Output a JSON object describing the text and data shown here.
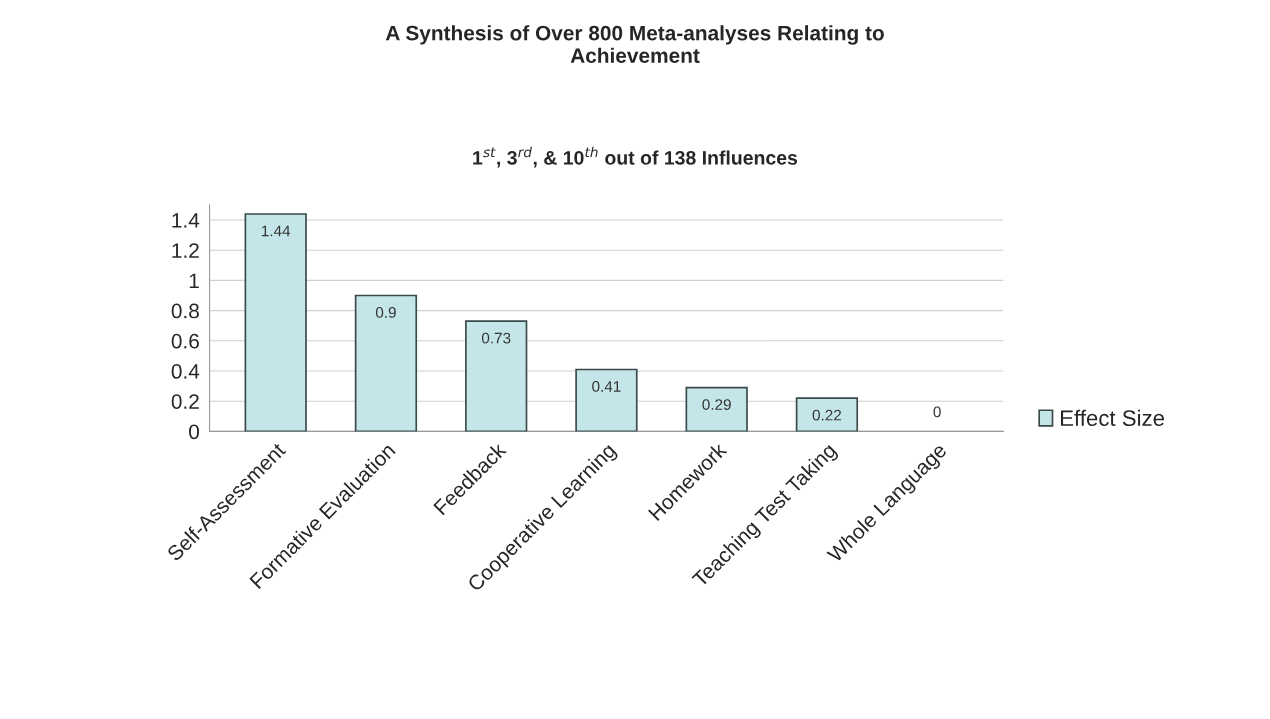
{
  "chart_data": {
    "type": "bar",
    "title": "A Synthesis of Over 800 Meta-analyses Relating to\nAchievement",
    "subtitle": "1$^{st}$, 3$^{rd}$, & 10$^{th}$ out of 138 Influences",
    "categories": [
      "Self-Assessment",
      "Formative Evaluation",
      "Feedback",
      "Cooperative Learning",
      "Homework",
      "Teaching Test Taking",
      "Whole Language"
    ],
    "series": [
      {
        "name": "Effect Size",
        "color": "#c4e6e8",
        "values": [
          1.44,
          0.9,
          0.73,
          0.41,
          0.29,
          0.22,
          0
        ]
      }
    ],
    "ylim": [
      0,
      1.5
    ],
    "yticks": [
      0,
      0.2,
      0.4,
      0.6,
      0.8,
      1,
      1.2,
      1.4
    ],
    "grid": "y",
    "legend": "right",
    "data_labels": true
  }
}
